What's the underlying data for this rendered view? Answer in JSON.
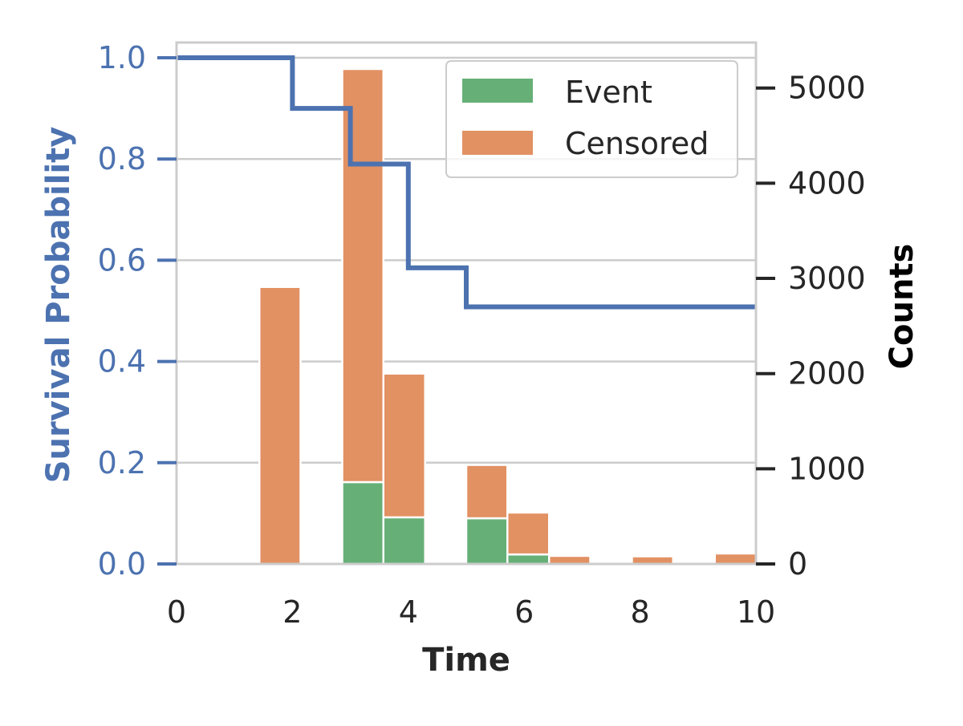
{
  "chart_data": {
    "type": "bar",
    "subtype": "stacked-histogram-with-survival-step-line",
    "xlabel": "Time",
    "ylabel_left": "Survival Probability",
    "ylabel_right": "Counts",
    "xlim": [
      0,
      10
    ],
    "ylim_left": [
      0,
      1.0
    ],
    "ylim_right": [
      0,
      5200
    ],
    "xticks": [
      "0",
      "2",
      "4",
      "6",
      "8",
      "10"
    ],
    "yticks_left": [
      "0.0",
      "0.2",
      "0.4",
      "0.6",
      "0.8",
      "1.0"
    ],
    "yticks_right": [
      "0",
      "1000",
      "2000",
      "3000",
      "4000",
      "5000"
    ],
    "grid": true,
    "legend_position": "top-right",
    "legend": [
      {
        "label": "Event",
        "color": "#66b077"
      },
      {
        "label": "Censored",
        "color": "#e29163"
      }
    ],
    "histogram": {
      "bins": [
        {
          "x0": 1.43,
          "x1": 2.14,
          "event": 0,
          "censored": 2910
        },
        {
          "x0": 2.86,
          "x1": 3.57,
          "event": 860,
          "censored": 4340
        },
        {
          "x0": 3.57,
          "x1": 4.29,
          "event": 490,
          "censored": 1510
        },
        {
          "x0": 5.0,
          "x1": 5.71,
          "event": 480,
          "censored": 560
        },
        {
          "x0": 5.71,
          "x1": 6.43,
          "event": 100,
          "censored": 440
        },
        {
          "x0": 6.43,
          "x1": 7.14,
          "event": 0,
          "censored": 85
        },
        {
          "x0": 7.86,
          "x1": 8.57,
          "event": 0,
          "censored": 80
        },
        {
          "x0": 9.29,
          "x1": 10.0,
          "event": 0,
          "censored": 110
        }
      ]
    },
    "survival_curve": {
      "name": "Survival Probability",
      "color": "#4c72b0",
      "points": [
        {
          "x": 0,
          "y": 1.0
        },
        {
          "x": 2,
          "y": 0.9
        },
        {
          "x": 3,
          "y": 0.79
        },
        {
          "x": 4,
          "y": 0.585
        },
        {
          "x": 5,
          "y": 0.508
        },
        {
          "x": 10,
          "y": 0.508
        }
      ]
    },
    "colors": {
      "survival_line": "#4c72b0",
      "event": "#66b077",
      "censored": "#e29163",
      "grid": "#cccccc",
      "spine": "#cccccc"
    }
  }
}
